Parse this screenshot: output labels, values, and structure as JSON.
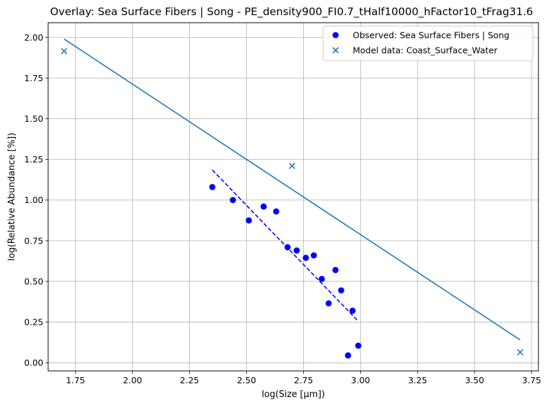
{
  "chart_data": {
    "type": "scatter",
    "title": "Overlay: Sea Surface Fibers | Song - PE_density900_FI0.7_tHalf10000_hFactor10_tFrag31.6",
    "xlabel": "log(Size [µm])",
    "ylabel": "log(Relative Abundance [%])",
    "xlim": [
      1.63,
      3.78
    ],
    "ylim": [
      -0.05,
      2.09
    ],
    "x_ticks": [
      1.75,
      2.0,
      2.25,
      2.5,
      2.75,
      3.0,
      3.25,
      3.5,
      3.75
    ],
    "x_tick_labels": [
      "1.75",
      "2.00",
      "2.25",
      "2.50",
      "2.75",
      "3.00",
      "3.25",
      "3.50",
      "3.75"
    ],
    "y_ticks": [
      0.0,
      0.25,
      0.5,
      0.75,
      1.0,
      1.25,
      1.5,
      1.75,
      2.0
    ],
    "y_tick_labels": [
      "0.00",
      "0.25",
      "0.50",
      "0.75",
      "1.00",
      "1.25",
      "1.50",
      "1.75",
      "2.00"
    ],
    "grid": true,
    "legend_position": "top-right",
    "series": [
      {
        "name": "Observed: Sea Surface Fibers | Song",
        "kind": "scatter",
        "marker": "circle",
        "color": "#0000ff",
        "points": [
          {
            "x": 2.35,
            "y": 1.08
          },
          {
            "x": 2.44,
            "y": 1.0
          },
          {
            "x": 2.51,
            "y": 0.875
          },
          {
            "x": 2.575,
            "y": 0.96
          },
          {
            "x": 2.63,
            "y": 0.93
          },
          {
            "x": 2.68,
            "y": 0.71
          },
          {
            "x": 2.72,
            "y": 0.69
          },
          {
            "x": 2.76,
            "y": 0.645
          },
          {
            "x": 2.795,
            "y": 0.66
          },
          {
            "x": 2.83,
            "y": 0.515
          },
          {
            "x": 2.86,
            "y": 0.365
          },
          {
            "x": 2.89,
            "y": 0.57
          },
          {
            "x": 2.915,
            "y": 0.445
          },
          {
            "x": 2.945,
            "y": 0.045
          },
          {
            "x": 2.965,
            "y": 0.32
          },
          {
            "x": 2.99,
            "y": 0.105
          }
        ]
      },
      {
        "name": "Model data: Coast_Surface_Water",
        "kind": "scatter",
        "marker": "x",
        "color": "#1f77b4",
        "points": [
          {
            "x": 1.7,
            "y": 1.915
          },
          {
            "x": 2.7,
            "y": 1.21
          },
          {
            "x": 3.7,
            "y": 0.065
          }
        ]
      }
    ],
    "fit_lines": [
      {
        "kind": "line",
        "style": "solid",
        "color": "#1f77b4",
        "points": [
          {
            "x": 1.7,
            "y": 1.99
          },
          {
            "x": 3.7,
            "y": 0.14
          }
        ]
      },
      {
        "kind": "line",
        "style": "dashed",
        "color": "#0000ff",
        "points": [
          {
            "x": 2.35,
            "y": 1.185
          },
          {
            "x": 2.99,
            "y": 0.255
          }
        ]
      }
    ]
  }
}
